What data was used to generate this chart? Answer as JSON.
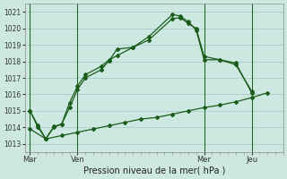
{
  "background_color": "#cce8e0",
  "grid_color": "#aacccc",
  "line_color": "#1a5c1a",
  "marker_color": "#1a5c1a",
  "xlabel": "Pression niveau de la mer( hPa )",
  "ylim": [
    1012.5,
    1021.5
  ],
  "yticks": [
    1013,
    1014,
    1015,
    1016,
    1017,
    1018,
    1019,
    1020,
    1021
  ],
  "day_labels": [
    "Mar",
    "Ven",
    "Mer",
    "Jeu"
  ],
  "total_hours": 96,
  "series1_x": [
    0,
    3,
    6,
    9,
    12,
    15,
    18,
    21,
    27,
    30,
    33,
    39,
    45,
    54,
    57,
    60,
    63,
    66,
    72,
    78,
    84
  ],
  "series1_y": [
    1015.0,
    1014.0,
    1013.3,
    1014.0,
    1014.2,
    1015.5,
    1016.5,
    1017.2,
    1017.7,
    1018.1,
    1018.35,
    1018.85,
    1019.5,
    1020.85,
    1020.75,
    1020.4,
    1019.9,
    1018.1,
    1018.1,
    1017.8,
    1016.2
  ],
  "series2_x": [
    0,
    3,
    6,
    9,
    12,
    15,
    18,
    21,
    27,
    30,
    33,
    39,
    45,
    54,
    57,
    60,
    63,
    66,
    72,
    78,
    84
  ],
  "series2_y": [
    1015.0,
    1014.1,
    1013.3,
    1014.05,
    1014.2,
    1015.2,
    1016.3,
    1017.0,
    1017.5,
    1018.05,
    1018.75,
    1018.85,
    1019.3,
    1020.6,
    1020.65,
    1020.3,
    1020.0,
    1018.3,
    1018.1,
    1017.9,
    1016.1
  ],
  "series3_x": [
    0,
    6,
    12,
    18,
    24,
    30,
    36,
    42,
    48,
    54,
    60,
    66,
    72,
    78,
    84,
    90
  ],
  "series3_y": [
    1013.9,
    1013.3,
    1013.5,
    1013.7,
    1013.9,
    1014.1,
    1014.3,
    1014.5,
    1014.6,
    1014.8,
    1015.0,
    1015.2,
    1015.35,
    1015.55,
    1015.8,
    1016.1
  ],
  "vline_x": [
    0,
    18,
    66,
    84
  ],
  "xlim": [
    -2,
    96
  ]
}
